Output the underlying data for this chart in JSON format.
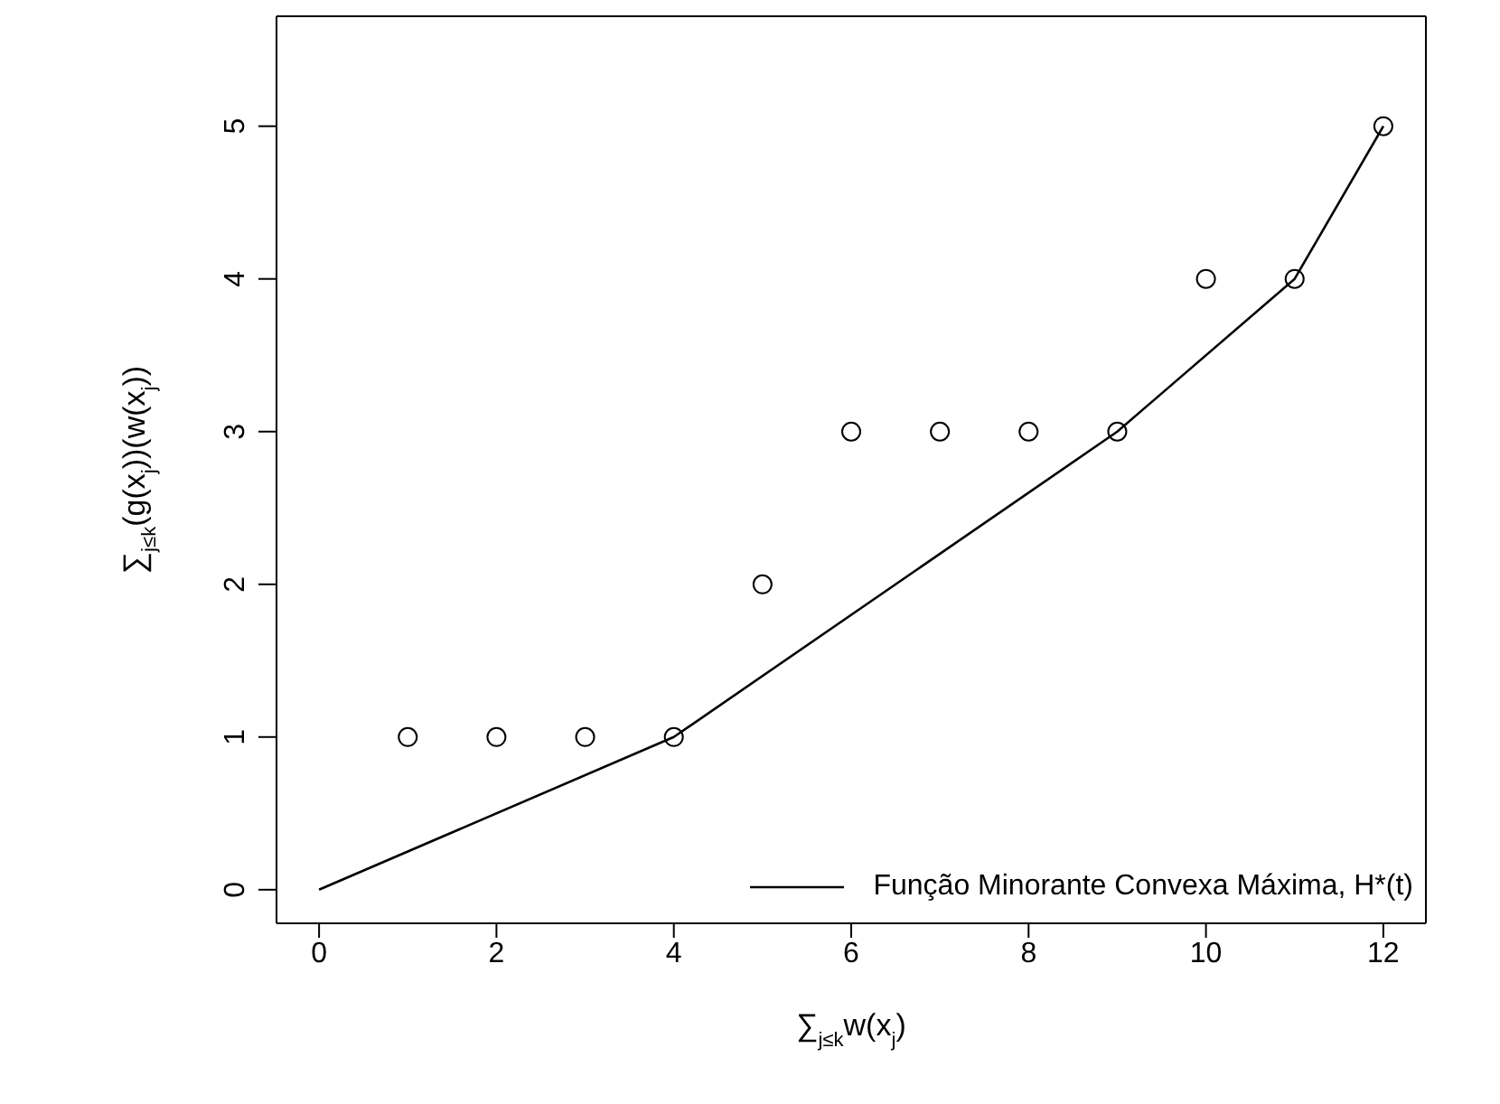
{
  "chart_data": {
    "type": "scatter",
    "xlabel": "∑$_{j≤k}$w(x$_{j}$)",
    "ylabel": "∑$_{j≤k}$(g(x$_{j}$))(w(x$_{j}$))",
    "xlim": [
      -0.48,
      12.48
    ],
    "ylim": [
      -0.22,
      5.72
    ],
    "xticks": [
      0,
      2,
      4,
      6,
      8,
      10,
      12
    ],
    "yticks": [
      0,
      1,
      2,
      3,
      4,
      5
    ],
    "grid": false,
    "legend": "bottom right",
    "series": [
      {
        "color": "#000000",
        "marker": "circle",
        "x": [
          1,
          2,
          3,
          4,
          5,
          6,
          7,
          8,
          9,
          10,
          11,
          12
        ],
        "values": [
          1,
          1,
          1,
          1,
          2,
          3,
          3,
          3,
          3,
          4,
          4,
          5
        ]
      },
      {
        "type": "line",
        "name": "Função Minorante Convexa Máxima, H*(t)",
        "color": "#000000",
        "marker": "none",
        "line_style": "solid",
        "x": [
          0,
          4,
          9,
          11,
          12
        ],
        "values": [
          0,
          1,
          3,
          4,
          5
        ]
      }
    ]
  }
}
